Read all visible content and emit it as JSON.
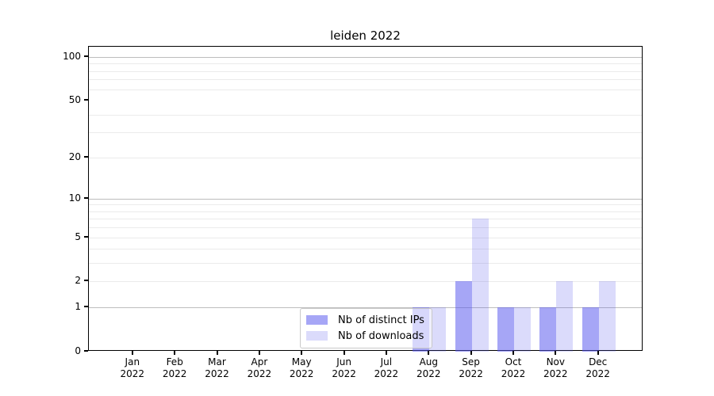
{
  "title": "leiden 2022",
  "chart_data": {
    "type": "bar",
    "title": "leiden 2022",
    "categories": [
      "Jan",
      "Feb",
      "Mar",
      "Apr",
      "May",
      "Jun",
      "Jul",
      "Aug",
      "Sep",
      "Oct",
      "Nov",
      "Dec"
    ],
    "year_label": "2022",
    "series": [
      {
        "name": "Nb of distinct IPs",
        "color": "rgba(85,85,238,0.52)",
        "values": [
          0,
          0,
          0,
          0,
          0,
          0,
          0,
          1,
          2,
          1,
          1,
          1
        ]
      },
      {
        "name": "Nb of downloads",
        "color": "rgba(85,85,238,0.21)",
        "values": [
          0,
          0,
          0,
          0,
          0,
          0,
          0,
          1,
          7,
          1,
          2,
          2
        ]
      }
    ],
    "y_ticks": [
      0,
      1,
      2,
      5,
      10,
      20,
      50,
      100
    ],
    "y_tick_labels": [
      "0",
      "1",
      "2",
      "5",
      "10",
      "20",
      "50",
      "100"
    ],
    "y_scale": "log1p",
    "ylim": [
      0,
      113
    ],
    "grid_minor_values": [
      2,
      3,
      4,
      5,
      6,
      7,
      8,
      9,
      20,
      30,
      40,
      60,
      70,
      80,
      90
    ],
    "grid_major_values": [
      1,
      10,
      100
    ],
    "grid": "on",
    "legend_position": "lower-center",
    "xlabel": "",
    "ylabel": ""
  },
  "colors": {
    "bar_ips": "rgba(85,85,238,0.52)",
    "bar_downloads": "rgba(85,85,238,0.21)",
    "grid_minor": "#ebebeb",
    "grid_major": "#bdbdbd",
    "spine": "#000000"
  }
}
